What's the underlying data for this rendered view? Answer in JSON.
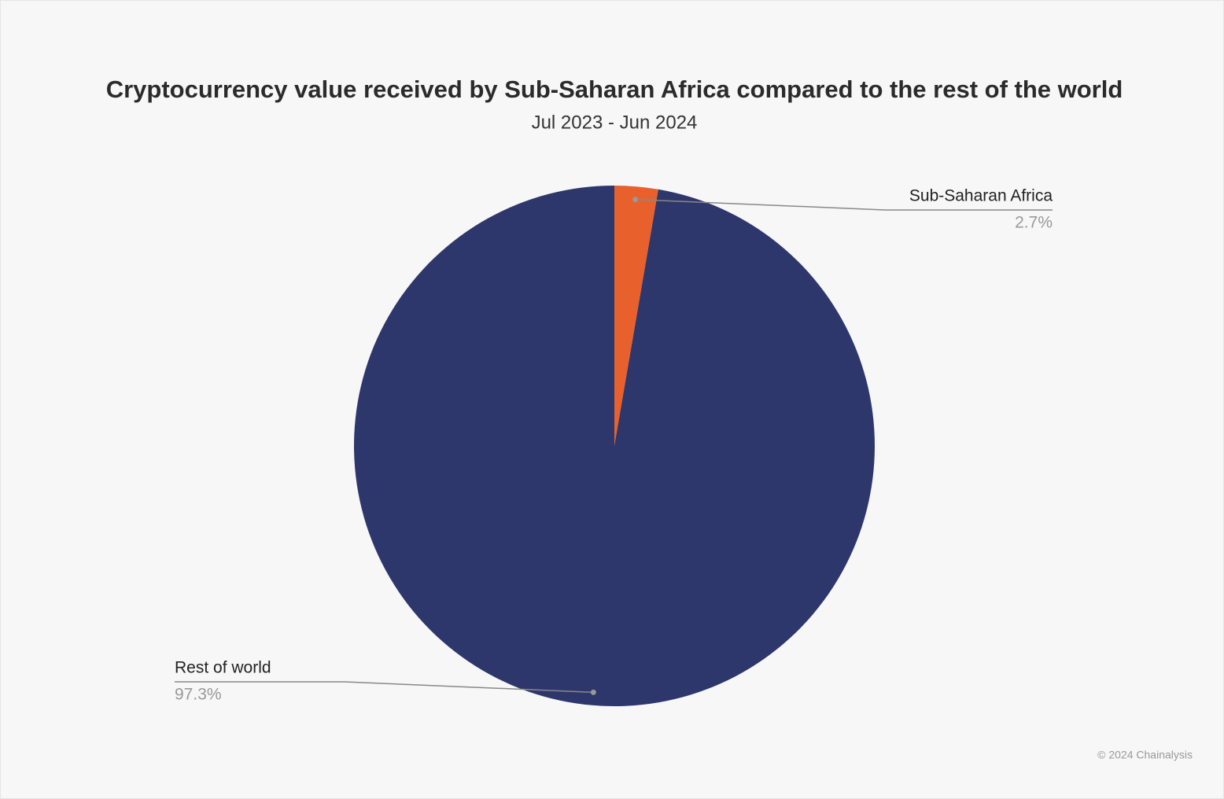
{
  "chart_data": {
    "type": "pie",
    "title": "Cryptocurrency value received by Sub-Saharan Africa compared to the rest of the world",
    "subtitle": "Jul 2023 - Jun 2024",
    "categories": [
      "Sub-Saharan Africa",
      "Rest of world"
    ],
    "values": [
      2.7,
      97.3
    ],
    "value_labels": [
      "2.7%",
      "97.3%"
    ],
    "colors": [
      "#e8612c",
      "#2d376c"
    ],
    "credit": "© 2024 Chainalysis"
  }
}
